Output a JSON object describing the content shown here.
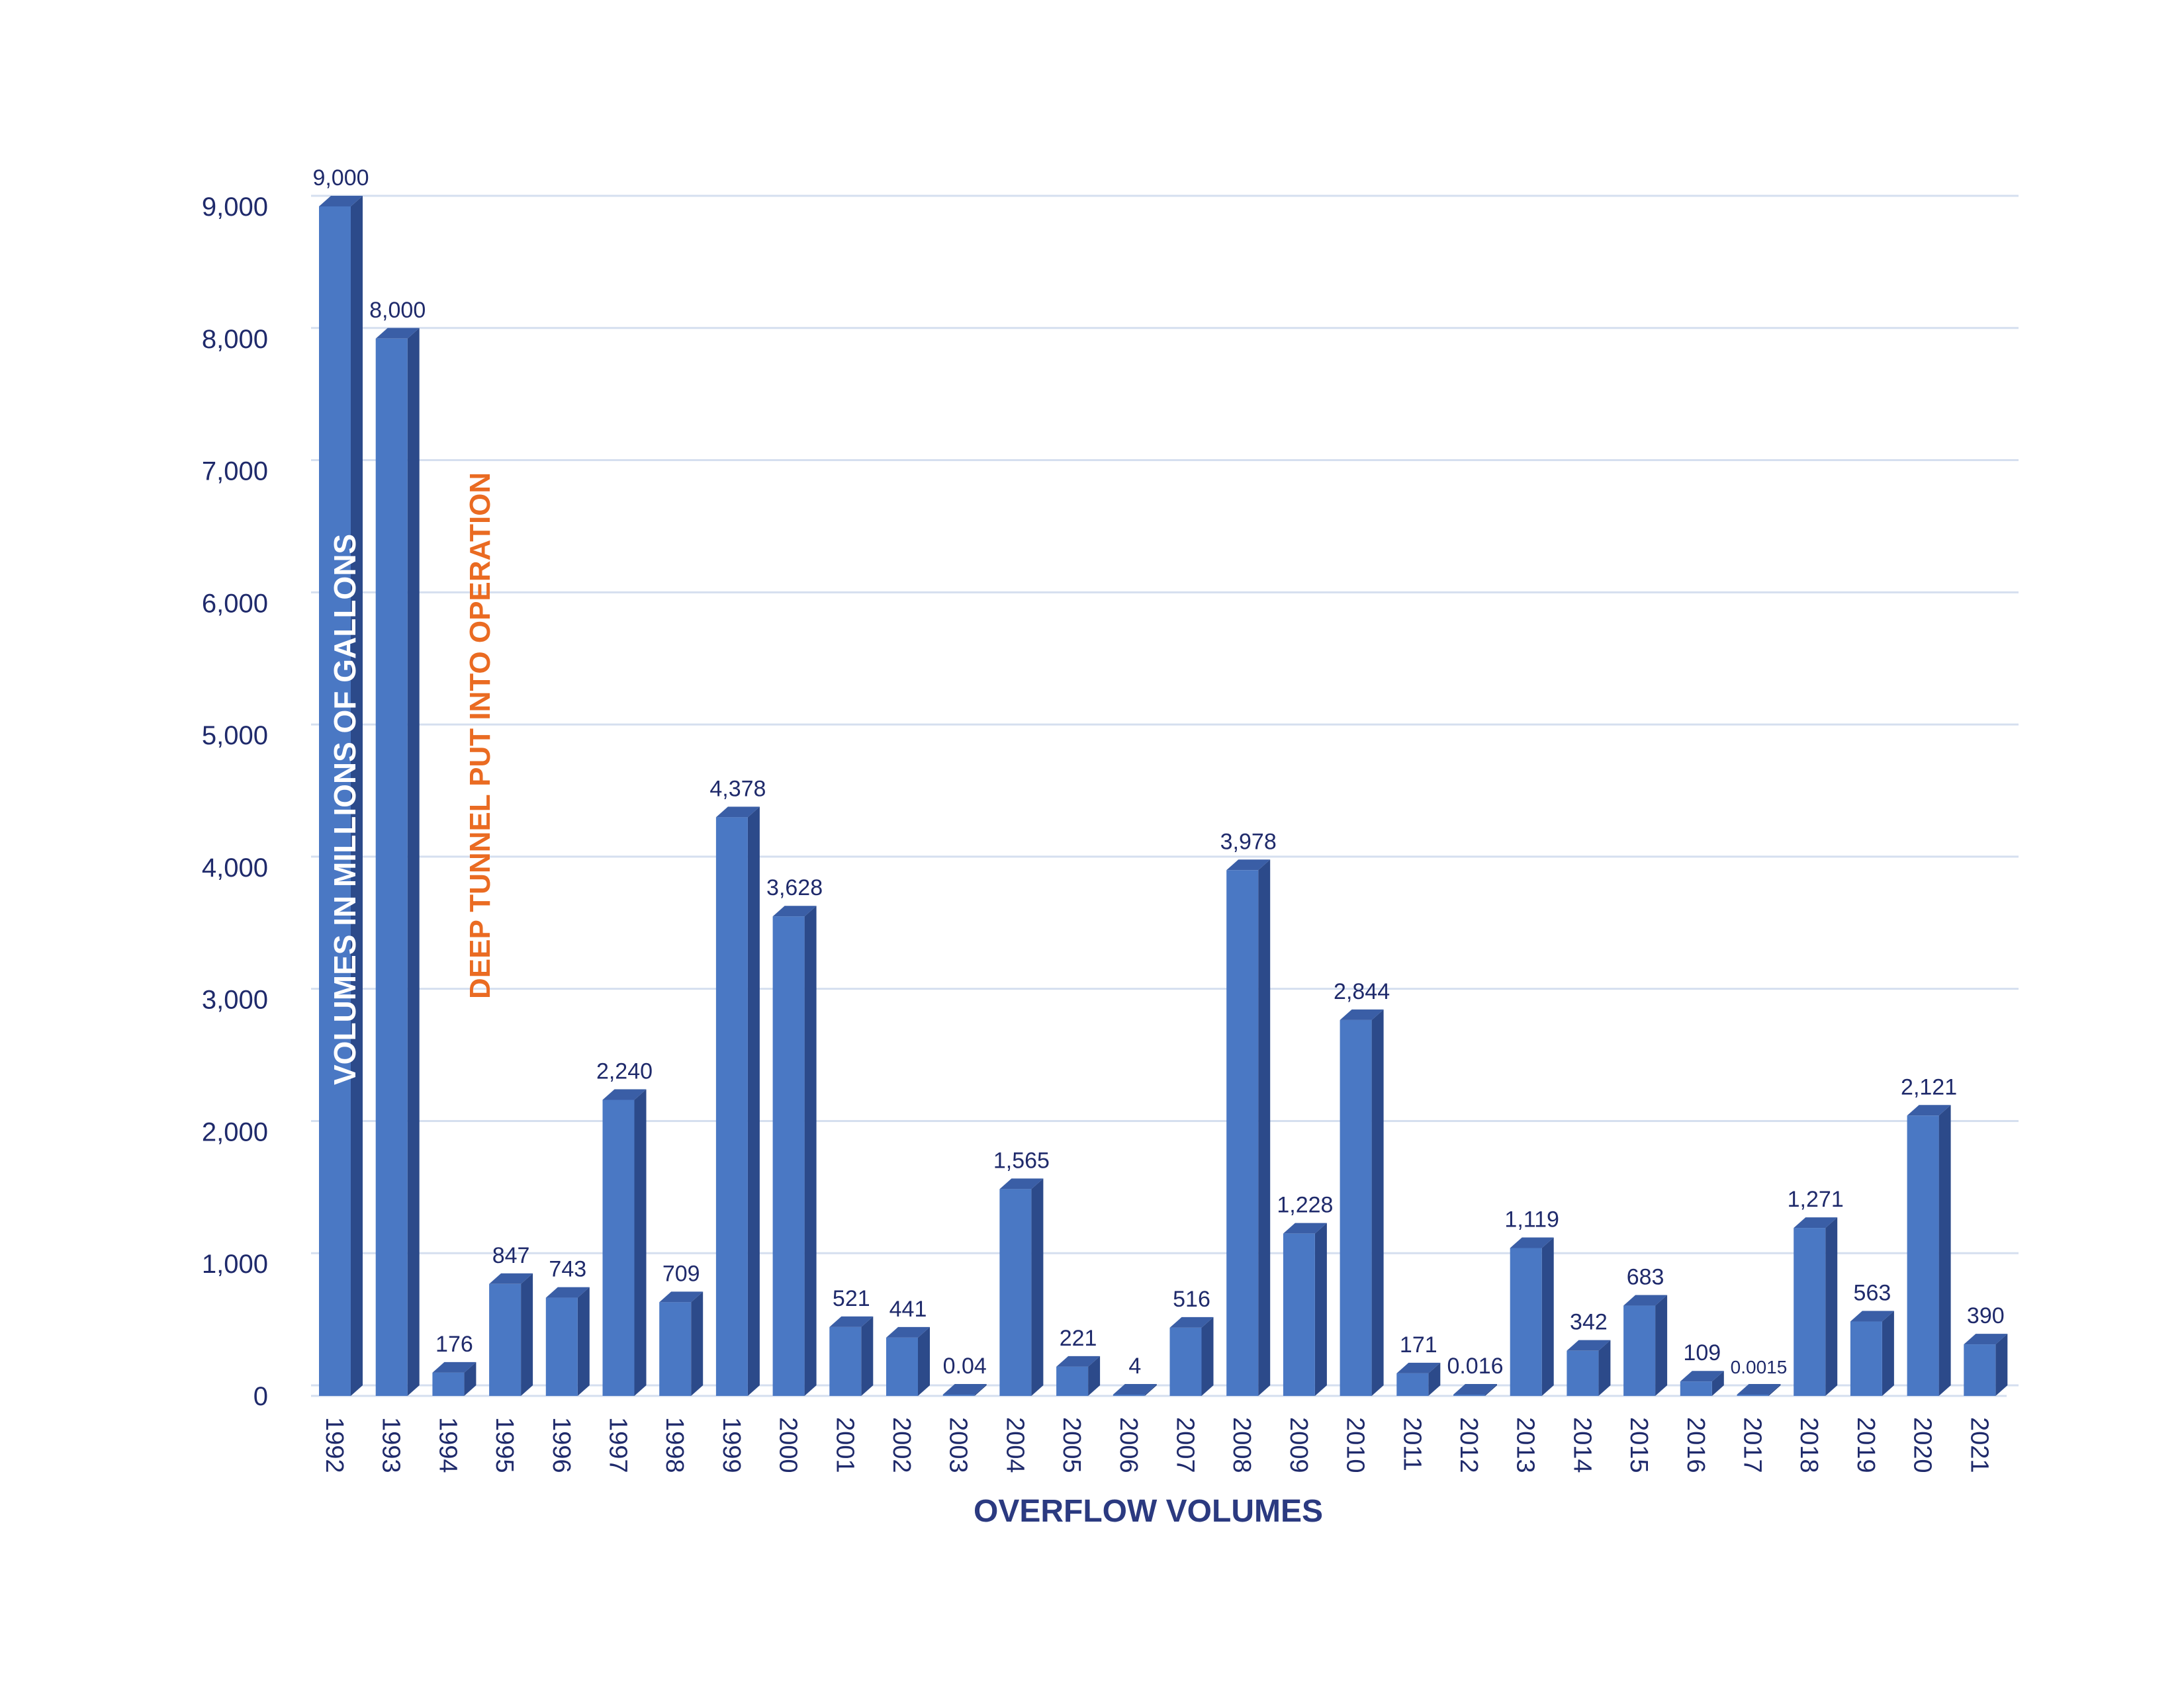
{
  "chart_data": {
    "type": "bar",
    "xlabel": "OVERFLOW VOLUMES",
    "ylabel": "VOLUMES IN MILLIONS OF GALLONS",
    "annotation": "DEEP TUNNEL PUT INTO OPERATION",
    "ylim": [
      0,
      9000
    ],
    "yticks": [
      "0",
      "1,000",
      "2,000",
      "3,000",
      "4,000",
      "5,000",
      "6,000",
      "7,000",
      "8,000",
      "9,000"
    ],
    "grid": true,
    "colors": {
      "bar": "#4a78c4",
      "bar_side": "#2c4a8a",
      "bar_top": "#3a5ea6",
      "grid": "#d5dfef",
      "annotation": "#ea6b22",
      "text": "#1f2a6b"
    },
    "categories": [
      "1992",
      "1993",
      "1994",
      "1995",
      "1996",
      "1997",
      "1998",
      "1999",
      "2000",
      "2001",
      "2002",
      "2003",
      "2004",
      "2005",
      "2006",
      "2007",
      "2008",
      "2009",
      "2010",
      "2011",
      "2012",
      "2013",
      "2014",
      "2015",
      "2016",
      "2017",
      "2018",
      "2019",
      "2020",
      "2021"
    ],
    "values": [
      9000,
      8000,
      176,
      847,
      743,
      2240,
      709,
      4378,
      3628,
      521,
      441,
      0.04,
      1565,
      221,
      4,
      516,
      3978,
      1228,
      2844,
      171,
      0.016,
      1119,
      342,
      683,
      109,
      0.0015,
      1271,
      563,
      2121,
      390
    ],
    "value_labels": [
      "9,000",
      "8,000",
      "176",
      "847",
      "743",
      "2,240",
      "709",
      "4,378",
      "3,628",
      "521",
      "441",
      "0.04",
      "1,565",
      "221",
      "4",
      "516",
      "3,978",
      "1,228",
      "2,844",
      "171",
      "0.016",
      "1,119",
      "342",
      "683",
      "109",
      "0.0015",
      "1,271",
      "563",
      "2,121",
      "390"
    ]
  }
}
